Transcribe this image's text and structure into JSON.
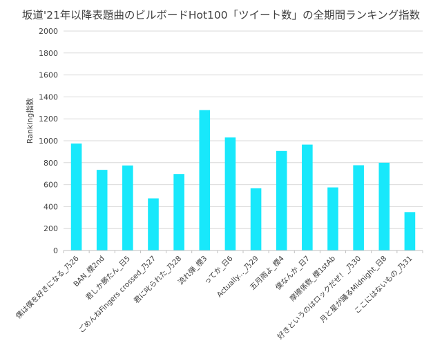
{
  "chart_data": {
    "type": "bar",
    "title": "坂道'21年以降表題曲のビルボードHot100「ツイート数」の全期間ランキング指数",
    "xlabel": "",
    "ylabel": "Ranking指数",
    "ylim": [
      0,
      2000
    ],
    "yticks": [
      0,
      200,
      400,
      600,
      800,
      1000,
      1200,
      1400,
      1600,
      1800,
      2000
    ],
    "grid": true,
    "legend": "none",
    "bar_color": "#18e8fb",
    "categories": [
      "僕は僕を好きになる_乃26",
      "BAN_櫻2nd",
      "君しか勝たん_日5",
      "ごめんねFingers crossed_乃27",
      "君に叱られた_乃28",
      "流れ弾_櫻3",
      "ってか_日6",
      "Actually..._乃29",
      "五月雨よ_櫻4",
      "僕なんか_日7",
      "摩擦係数_櫻1stAb",
      "好きというのはロックだぜ！_乃30",
      "月と星が踊るMidnight_日8",
      "ここにはないもの_乃31"
    ],
    "values": [
      975,
      735,
      775,
      475,
      697,
      1280,
      1030,
      567,
      907,
      965,
      575,
      777,
      800,
      350
    ]
  }
}
